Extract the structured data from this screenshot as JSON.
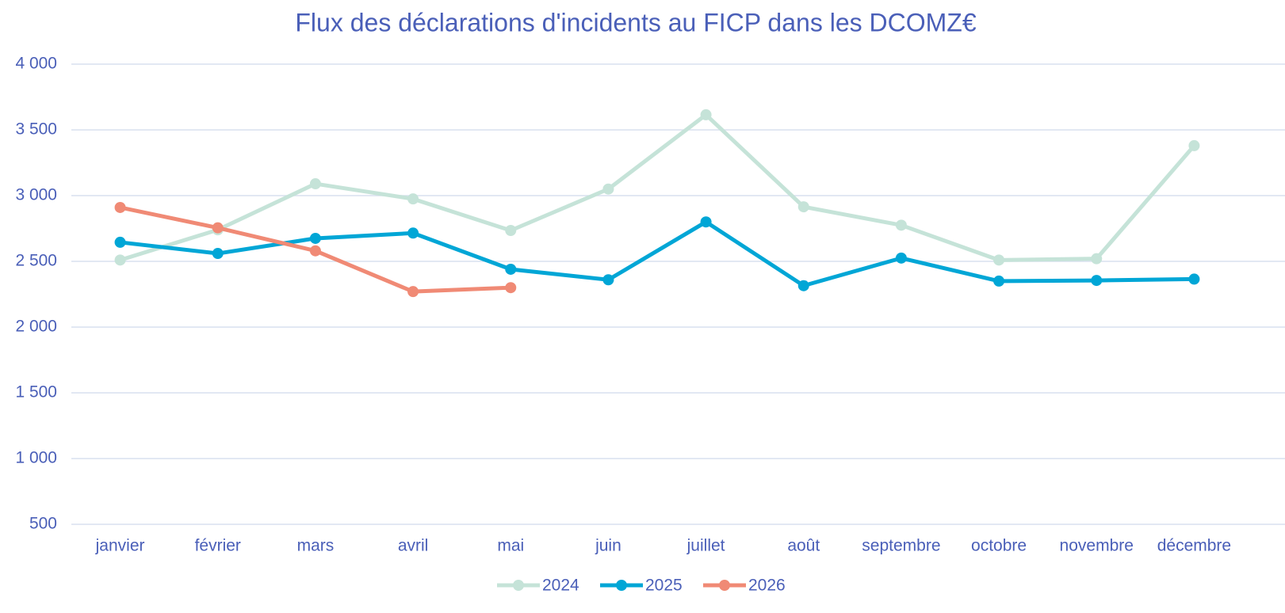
{
  "chart_data": {
    "type": "line",
    "title": "Flux des déclarations d'incidents au FICP dans les DCOMZ€",
    "categories": [
      "janvier",
      "février",
      "mars",
      "avril",
      "mai",
      "juin",
      "juillet",
      "août",
      "septembre",
      "octobre",
      "novembre",
      "décembre"
    ],
    "series": [
      {
        "name": "2024",
        "color": "#c5e3d8",
        "values": [
          2510,
          2740,
          3090,
          2975,
          2735,
          3050,
          3615,
          2915,
          2775,
          2510,
          2520,
          3380
        ]
      },
      {
        "name": "2025",
        "color": "#00a6d6",
        "values": [
          2645,
          2560,
          2675,
          2715,
          2440,
          2360,
          2800,
          2315,
          2525,
          2350,
          2355,
          2365
        ]
      },
      {
        "name": "2026",
        "color": "#f08a75",
        "values": [
          2910,
          2755,
          2580,
          2270,
          2300,
          null,
          null,
          null,
          null,
          null,
          null,
          null
        ]
      }
    ],
    "ylim": [
      500,
      4000
    ],
    "yticks": [
      500,
      {
        "value": 1000,
        "label": "1 000"
      },
      {
        "value": 1500,
        "label": "1 500"
      },
      {
        "value": 2000,
        "label": "2 000"
      },
      {
        "value": 2500,
        "label": "2 500"
      },
      {
        "value": 3000,
        "label": "3 000"
      },
      {
        "value": 3500,
        "label": "3 500"
      },
      {
        "value": 4000,
        "label": "4 000"
      }
    ],
    "grid": true,
    "legend": "bottom"
  }
}
